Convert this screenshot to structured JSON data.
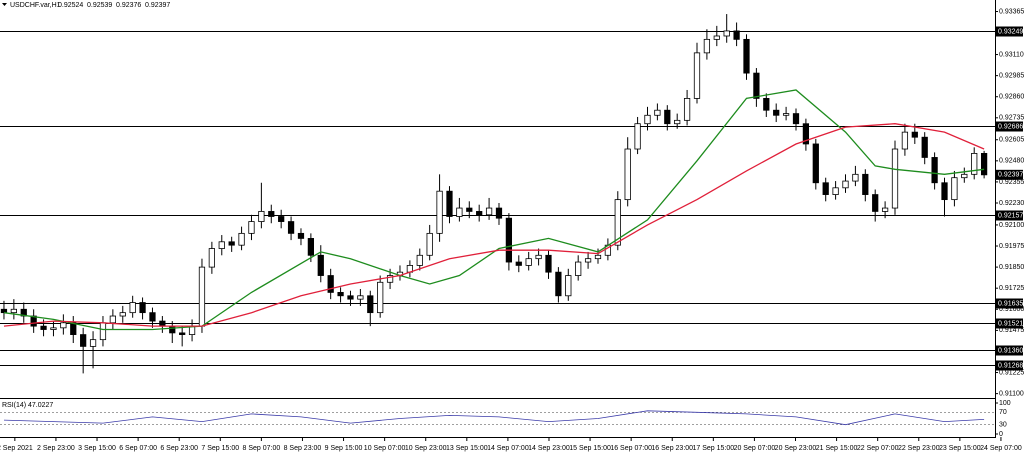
{
  "chart_data": [
    {
      "type": "candlestick",
      "title": "USDCHF.var,H1",
      "xlim": [
        -0.4,
        100.1
      ],
      "ylim": [
        0.9108,
        0.9338
      ],
      "yticks": [
        0.93365,
        {
          "value": 0.9311,
          "label": "0.93110"
        },
        0.92985,
        {
          "value": 0.9286,
          "label": "0.92860"
        },
        0.92735,
        0.92605,
        {
          "value": 0.9248,
          "label": "0.92480"
        },
        0.92355,
        {
          "value": 0.9223,
          "label": "0.92230"
        },
        {
          "value": 0.921,
          "label": "0.92100"
        },
        0.91975,
        {
          "value": 0.9185,
          "label": "0.91850"
        },
        0.91725,
        {
          "value": 0.916,
          "label": "0.91600"
        },
        0.91475,
        0.91225,
        {
          "value": 0.911,
          "label": "0.91100"
        }
      ],
      "xticks": [
        {
          "value": 1.1,
          "label": "2 Sep 2021"
        },
        {
          "value": 5.25,
          "label": "2 Sep 23:00"
        },
        {
          "value": 9.4,
          "label": "3 Sep 15:00"
        },
        {
          "value": 13.55,
          "label": "6 Sep 07:00"
        },
        {
          "value": 17.7,
          "label": "6 Sep 23:00"
        },
        {
          "value": 21.85,
          "label": "7 Sep 15:00"
        },
        {
          "value": 26,
          "label": "8 Sep 07:00"
        },
        {
          "value": 30.15,
          "label": "8 Sep 23:00"
        },
        {
          "value": 34.3,
          "label": "9 Sep 15:00"
        },
        {
          "value": 38.45,
          "label": "10 Sep 07:00"
        },
        {
          "value": 42.6,
          "label": "10 Sep 23:00"
        },
        {
          "value": 46.75,
          "label": "13 Sep 15:00"
        },
        {
          "value": 50.9,
          "label": "14 Sep 07:00"
        },
        {
          "value": 55.05,
          "label": "14 Sep 23:00"
        },
        {
          "value": 59.2,
          "label": "15 Sep 15:00"
        },
        {
          "value": 63.35,
          "label": "16 Sep 07:00"
        },
        {
          "value": 67.5,
          "label": "16 Sep 23:00"
        },
        {
          "value": 71.65,
          "label": "17 Sep 15:00"
        },
        {
          "value": 75.8,
          "label": "20 Sep 07:00"
        },
        {
          "value": 79.95,
          "label": "20 Sep 23:00"
        },
        {
          "value": 84.1,
          "label": "21 Sep 15:00"
        },
        {
          "value": 88.25,
          "label": "22 Sep 07:00"
        },
        {
          "value": 92.4,
          "label": "22 Sep 23:00"
        },
        {
          "value": 96.55,
          "label": "23 Sep 15:00"
        },
        {
          "value": 100.7,
          "label": "24 Sep 07:00"
        }
      ],
      "open": [
        0.916,
        0.9158,
        0.916,
        0.9156,
        0.915,
        0.9148,
        0.9149,
        0.9152,
        0.9145,
        0.9138,
        0.9142,
        0.9152,
        0.9156,
        0.9158,
        0.9164,
        0.9158,
        0.9153,
        0.915,
        0.9146,
        0.9145,
        0.915,
        0.9185,
        0.9196,
        0.92,
        0.9198,
        0.9205,
        0.9212,
        0.9218,
        0.9215,
        0.9212,
        0.9205,
        0.9202,
        0.9192,
        0.918,
        0.917,
        0.9168,
        0.9166,
        0.9168,
        0.9158,
        0.9176,
        0.918,
        0.9182,
        0.9186,
        0.9192,
        0.9205,
        0.923,
        0.9215,
        0.922,
        0.9218,
        0.9216,
        0.922,
        0.9214,
        0.9188,
        0.9186,
        0.919,
        0.9192,
        0.9182,
        0.9168,
        0.918,
        0.9188,
        0.919,
        0.9192,
        0.9198,
        0.9225,
        0.9255,
        0.927,
        0.9275,
        0.9278,
        0.927,
        0.9272,
        0.9285,
        0.9312,
        0.932,
        0.9322,
        0.9325,
        0.932,
        0.93,
        0.9285,
        0.9278,
        0.9275,
        0.9276,
        0.927,
        0.9258,
        0.9235,
        0.9228,
        0.9232,
        0.9236,
        0.924,
        0.9228,
        0.9218,
        0.922,
        0.9255,
        0.9265,
        0.9262,
        0.925,
        0.9235,
        0.9225,
        0.9238,
        0.924,
        0.92524
      ],
      "high": [
        0.9165,
        0.9166,
        0.9164,
        0.916,
        0.9154,
        0.9153,
        0.9157,
        0.9156,
        0.9149,
        0.9147,
        0.9156,
        0.916,
        0.9162,
        0.9168,
        0.9167,
        0.9161,
        0.9156,
        0.9153,
        0.915,
        0.9154,
        0.919,
        0.92,
        0.9204,
        0.9203,
        0.9209,
        0.9216,
        0.9235,
        0.9222,
        0.9219,
        0.9215,
        0.9208,
        0.9205,
        0.9198,
        0.9184,
        0.9173,
        0.9171,
        0.9172,
        0.9171,
        0.918,
        0.9184,
        0.9186,
        0.9189,
        0.9196,
        0.921,
        0.924,
        0.9233,
        0.9226,
        0.9224,
        0.9222,
        0.9226,
        0.9223,
        0.9217,
        0.9192,
        0.9194,
        0.9196,
        0.9195,
        0.9185,
        0.9184,
        0.9192,
        0.9194,
        0.9196,
        0.9202,
        0.923,
        0.9262,
        0.9274,
        0.928,
        0.9282,
        0.9281,
        0.9276,
        0.929,
        0.9318,
        0.9326,
        0.9328,
        0.9335,
        0.933,
        0.9323,
        0.9303,
        0.9288,
        0.9282,
        0.928,
        0.9279,
        0.9273,
        0.9261,
        0.9238,
        0.9236,
        0.924,
        0.9245,
        0.9243,
        0.9231,
        0.9224,
        0.926,
        0.927,
        0.927,
        0.9265,
        0.9253,
        0.9238,
        0.9242,
        0.9244,
        0.9256,
        0.92539
      ],
      "low": [
        0.9154,
        0.9154,
        0.9152,
        0.9146,
        0.9144,
        0.9144,
        0.9145,
        0.914,
        0.9122,
        0.9125,
        0.9138,
        0.9148,
        0.9152,
        0.9155,
        0.9154,
        0.9149,
        0.9146,
        0.914,
        0.9138,
        0.9141,
        0.9146,
        0.9181,
        0.9192,
        0.9194,
        0.9195,
        0.9201,
        0.9208,
        0.9211,
        0.9208,
        0.9201,
        0.9198,
        0.9188,
        0.9176,
        0.9166,
        0.9164,
        0.9162,
        0.9162,
        0.915,
        0.9155,
        0.9172,
        0.9177,
        0.9179,
        0.9183,
        0.9189,
        0.92,
        0.9211,
        0.9212,
        0.9214,
        0.9212,
        0.9213,
        0.921,
        0.9183,
        0.9182,
        0.9183,
        0.9186,
        0.9178,
        0.9164,
        0.9165,
        0.9177,
        0.9184,
        0.9187,
        0.9189,
        0.9195,
        0.9221,
        0.9252,
        0.9266,
        0.9272,
        0.9266,
        0.9267,
        0.9269,
        0.9282,
        0.9308,
        0.9316,
        0.9318,
        0.9316,
        0.9296,
        0.928,
        0.9274,
        0.9271,
        0.9272,
        0.9266,
        0.9254,
        0.9231,
        0.9224,
        0.9225,
        0.9229,
        0.9233,
        0.9224,
        0.9212,
        0.9214,
        0.9216,
        0.9251,
        0.9258,
        0.9246,
        0.9231,
        0.9215,
        0.9221,
        0.9235,
        0.9237,
        0.92376
      ],
      "close": [
        0.9158,
        0.916,
        0.9156,
        0.915,
        0.9148,
        0.9149,
        0.9152,
        0.9145,
        0.9138,
        0.9142,
        0.9152,
        0.9156,
        0.9158,
        0.9164,
        0.9158,
        0.9153,
        0.915,
        0.9146,
        0.9145,
        0.915,
        0.9185,
        0.9196,
        0.92,
        0.9198,
        0.9205,
        0.9212,
        0.9218,
        0.9215,
        0.9212,
        0.9205,
        0.9202,
        0.9192,
        0.918,
        0.917,
        0.9168,
        0.9166,
        0.9168,
        0.9158,
        0.9176,
        0.918,
        0.9182,
        0.9186,
        0.9192,
        0.9205,
        0.923,
        0.9215,
        0.922,
        0.9218,
        0.9216,
        0.922,
        0.9214,
        0.9188,
        0.9186,
        0.919,
        0.9192,
        0.9182,
        0.9168,
        0.918,
        0.9188,
        0.919,
        0.9192,
        0.9198,
        0.9225,
        0.9255,
        0.927,
        0.9275,
        0.9278,
        0.927,
        0.9272,
        0.9285,
        0.9312,
        0.932,
        0.9322,
        0.9325,
        0.932,
        0.93,
        0.9285,
        0.9278,
        0.9275,
        0.9276,
        0.927,
        0.9258,
        0.9235,
        0.9228,
        0.9232,
        0.9236,
        0.924,
        0.9228,
        0.9218,
        0.922,
        0.9255,
        0.9265,
        0.9262,
        0.925,
        0.9235,
        0.9225,
        0.9238,
        0.924,
        0.92524,
        0.92397
      ],
      "candle_color": "#000000",
      "levels": [
        0.93249,
        0.92686,
        0.92157,
        0.91635,
        0.91521,
        0.9136,
        0.91268
      ],
      "level_labels": [
        "0.93249",
        "0.92686",
        "0.92157",
        "0.91635",
        "0.91521",
        "0.91360",
        "0.91268"
      ],
      "level_color": "#000000",
      "series": [
        {
          "color": "#1e8c1e",
          "x": [
            0,
            5,
            10,
            15,
            20,
            25,
            32,
            35,
            40,
            43,
            46,
            50,
            55,
            60,
            65,
            70,
            75,
            80,
            85,
            88,
            90,
            95,
            99
          ],
          "values": [
            0.9158,
            0.9154,
            0.9148,
            0.9148,
            0.915,
            0.917,
            0.9194,
            0.919,
            0.918,
            0.9175,
            0.918,
            0.9196,
            0.9202,
            0.9194,
            0.9213,
            0.9248,
            0.9285,
            0.929,
            0.9265,
            0.9245,
            0.9243,
            0.924,
            0.9243
          ]
        },
        {
          "color": "#e0203a",
          "x": [
            0,
            5,
            10,
            15,
            20,
            25,
            30,
            35,
            40,
            45,
            50,
            55,
            60,
            65,
            70,
            75,
            80,
            85,
            90,
            95,
            99
          ],
          "values": [
            0.915,
            0.9153,
            0.9152,
            0.915,
            0.915,
            0.9158,
            0.9168,
            0.9175,
            0.918,
            0.919,
            0.9195,
            0.9195,
            0.9193,
            0.921,
            0.9225,
            0.9242,
            0.9258,
            0.9268,
            0.927,
            0.9265,
            0.9255
          ]
        }
      ]
    },
    {
      "type": "line",
      "title": "RSI(14)",
      "color": "#3a3aa8",
      "xlim": [
        -0.4,
        100.1
      ],
      "ylim": [
        0,
        100
      ],
      "yticks": [
        0,
        30,
        70,
        100
      ],
      "x": [
        0,
        5,
        10,
        15,
        20,
        25,
        30,
        35,
        40,
        45,
        50,
        55,
        60,
        65,
        70,
        75,
        80,
        85,
        90,
        95,
        99
      ],
      "values": [
        45,
        40,
        35,
        55,
        40,
        65,
        55,
        35,
        50,
        60,
        55,
        40,
        50,
        75,
        70,
        65,
        55,
        30,
        65,
        40,
        47.0227
      ]
    }
  ]
}
